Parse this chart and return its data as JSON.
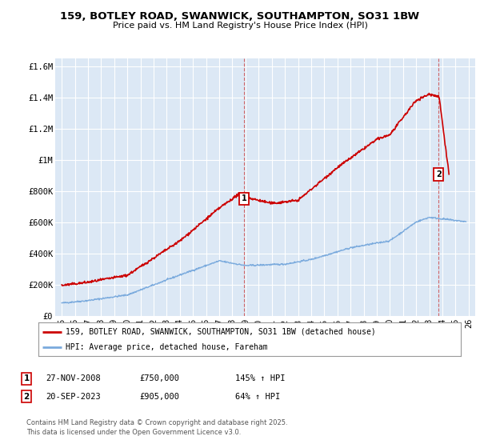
{
  "title_line1": "159, BOTLEY ROAD, SWANWICK, SOUTHAMPTON, SO31 1BW",
  "title_line2": "Price paid vs. HM Land Registry's House Price Index (HPI)",
  "background_color": "#ffffff",
  "plot_bg_color": "#dce8f5",
  "grid_color": "#ffffff",
  "red_color": "#cc0000",
  "blue_color": "#7aaadd",
  "ylim": [
    0,
    1650000
  ],
  "yticks": [
    0,
    200000,
    400000,
    600000,
    800000,
    1000000,
    1200000,
    1400000,
    1600000
  ],
  "ytick_labels": [
    "£0",
    "£200K",
    "£400K",
    "£600K",
    "£800K",
    "£1M",
    "£1.2M",
    "£1.4M",
    "£1.6M"
  ],
  "xlim_start": 1994.5,
  "xlim_end": 2026.5,
  "xticks": [
    1995,
    1996,
    1997,
    1998,
    1999,
    2000,
    2001,
    2002,
    2003,
    2004,
    2005,
    2006,
    2007,
    2008,
    2009,
    2010,
    2011,
    2012,
    2013,
    2014,
    2015,
    2016,
    2017,
    2018,
    2019,
    2020,
    2021,
    2022,
    2023,
    2024,
    2025,
    2026
  ],
  "marker1_x": 2008.9,
  "marker1_y": 750000,
  "marker1_label": "1",
  "marker1_date": "27-NOV-2008",
  "marker1_price": "£750,000",
  "marker1_hpi": "145% ↑ HPI",
  "marker2_x": 2023.72,
  "marker2_y": 905000,
  "marker2_label": "2",
  "marker2_date": "20-SEP-2023",
  "marker2_price": "£905,000",
  "marker2_hpi": "64% ↑ HPI",
  "legend_line1": "159, BOTLEY ROAD, SWANWICK, SOUTHAMPTON, SO31 1BW (detached house)",
  "legend_line2": "HPI: Average price, detached house, Fareham",
  "footer": "Contains HM Land Registry data © Crown copyright and database right 2025.\nThis data is licensed under the Open Government Licence v3.0."
}
